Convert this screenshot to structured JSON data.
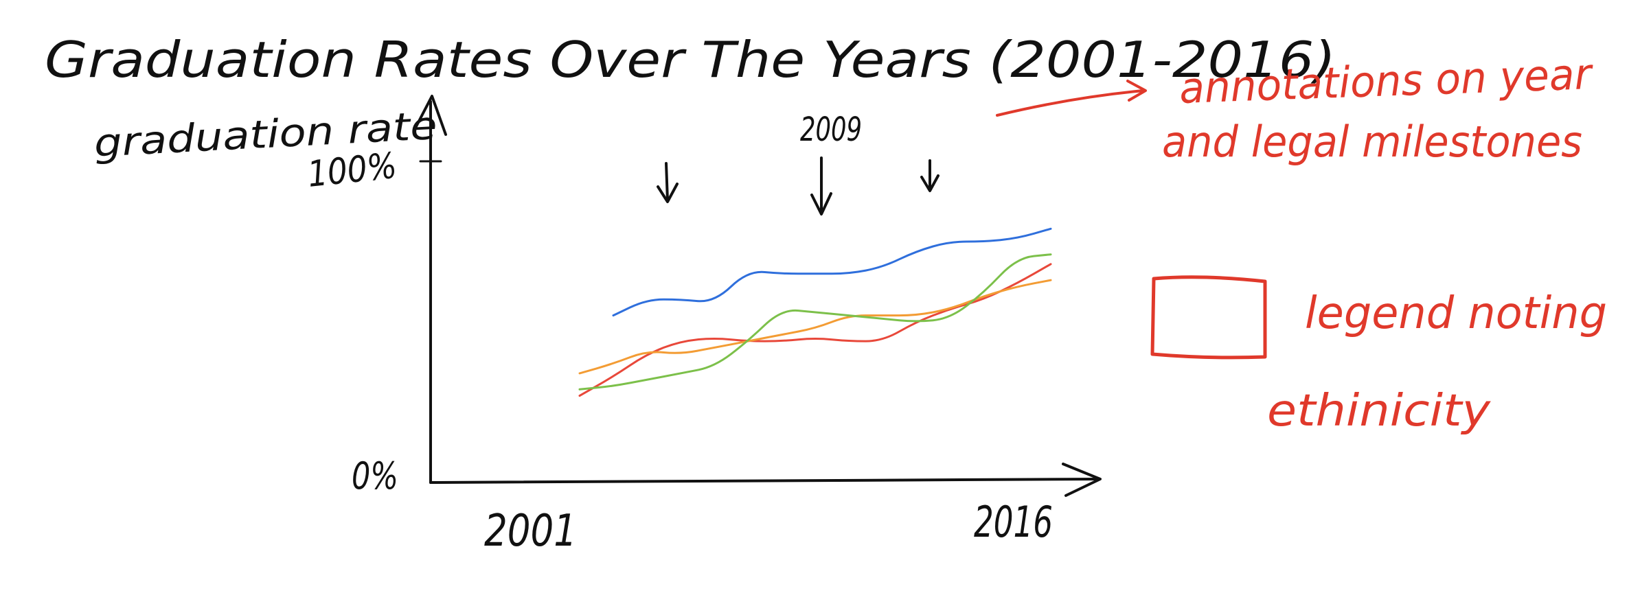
{
  "chart_data": {
    "type": "line",
    "title": "Graduation Rates Over The Years (2001-2016)",
    "ylabel": "graduation rate",
    "xlabel": "",
    "x_tick_labels": [
      "2001",
      "2016"
    ],
    "y_tick_labels": [
      "0%",
      "100%"
    ],
    "x_range": [
      2001,
      2016
    ],
    "ylim": [
      0,
      100
    ],
    "x": [
      2001,
      2002,
      2003,
      2004,
      2005,
      2006,
      2007,
      2008,
      2009,
      2010,
      2011,
      2012,
      2013,
      2014,
      2015,
      2016
    ],
    "series": [
      {
        "color": "#2f6fdc",
        "values": [
          null,
          null,
          52,
          57,
          57,
          56,
          66,
          65,
          65,
          65,
          67,
          72,
          75,
          75,
          76,
          79
        ]
      },
      {
        "color": "#e8483a",
        "values": [
          null,
          27,
          33,
          40,
          44,
          45,
          44,
          44,
          45,
          44,
          44,
          50,
          54,
          57,
          62,
          68
        ]
      },
      {
        "color": "#f39c34",
        "values": [
          null,
          34,
          37,
          41,
          40,
          42,
          44,
          46,
          48,
          52,
          52,
          52,
          54,
          58,
          61,
          63
        ]
      },
      {
        "color": "#7cc04a",
        "values": [
          null,
          29,
          30,
          32,
          34,
          36,
          44,
          54,
          53,
          52,
          51,
          50,
          51,
          59,
          70,
          71
        ]
      }
    ],
    "grid": false,
    "legend": {
      "position": "right",
      "entries": []
    }
  },
  "annotations": {
    "milestone_year_label": "2009",
    "milestone_arrow_count": 3,
    "note_milestones_line1": "annotations on year",
    "note_milestones_line2": "and legal milestones",
    "note_legend_line1": "legend noting",
    "note_legend_line2": "ethinicity"
  },
  "colors": {
    "ink": "#111111",
    "annotation_red": "#e0392b"
  }
}
